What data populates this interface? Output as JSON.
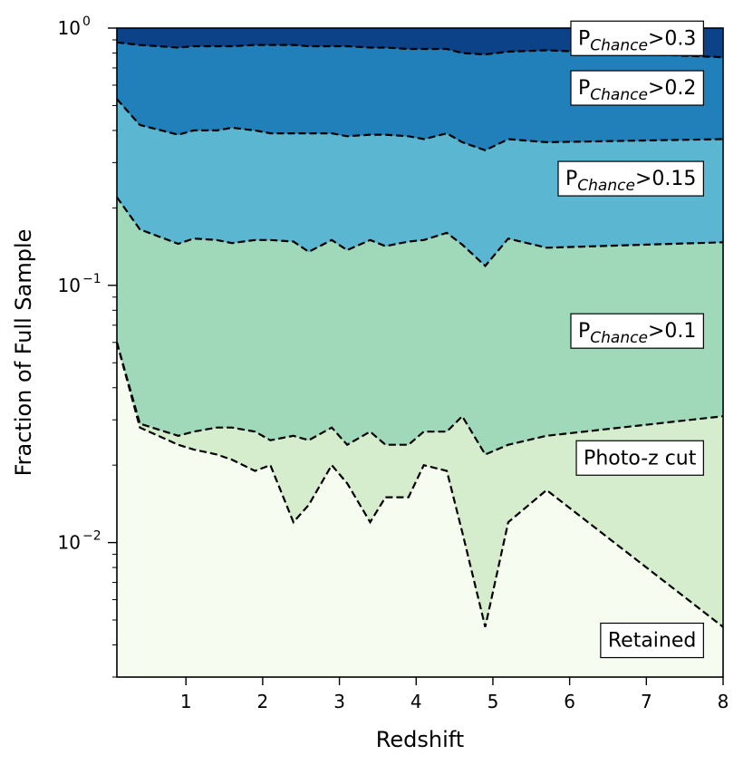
{
  "chart_data": {
    "type": "area",
    "xlabel": "Redshift",
    "ylabel": "Fraction of Full Sample",
    "yscale": "log",
    "xlim": [
      0.1,
      8.0
    ],
    "ylim": [
      0.003,
      1.0
    ],
    "x_ticks": [
      {
        "value": 1,
        "label": "1"
      },
      {
        "value": 2,
        "label": "2"
      },
      {
        "value": 3,
        "label": "3"
      },
      {
        "value": 4,
        "label": "4"
      },
      {
        "value": 5,
        "label": "5"
      },
      {
        "value": 6,
        "label": "6"
      },
      {
        "value": 7,
        "label": "7"
      },
      {
        "value": 8,
        "label": "8"
      }
    ],
    "y_ticks": [
      {
        "value": 1.0,
        "base": "10",
        "exponent": "0"
      },
      {
        "value": 0.1,
        "base": "10",
        "exponent": "−1"
      },
      {
        "value": 0.01,
        "base": "10",
        "exponent": "−2"
      }
    ],
    "x": [
      0.1,
      0.4,
      0.9,
      1.1,
      1.4,
      1.6,
      1.9,
      2.1,
      2.4,
      2.6,
      2.9,
      3.1,
      3.4,
      3.6,
      3.9,
      4.1,
      4.4,
      4.6,
      4.9,
      5.2,
      5.7,
      8.0
    ],
    "series": [
      {
        "name": "Retained",
        "color": "#f7fcf0",
        "values": [
          0.06,
          0.028,
          0.024,
          0.023,
          0.022,
          0.021,
          0.019,
          0.02,
          0.012,
          0.014,
          0.02,
          0.017,
          0.012,
          0.015,
          0.015,
          0.02,
          0.019,
          0.011,
          0.0047,
          0.012,
          0.016,
          0.0047
        ]
      },
      {
        "name": "Photo-z cut",
        "color": "#d5edcd",
        "values": [
          0.06,
          0.029,
          0.026,
          0.027,
          0.028,
          0.028,
          0.027,
          0.025,
          0.026,
          0.025,
          0.028,
          0.024,
          0.027,
          0.024,
          0.024,
          0.027,
          0.027,
          0.031,
          0.022,
          0.024,
          0.026,
          0.031
        ]
      },
      {
        "name": "PChance>0.1",
        "color": "#9fd9ba",
        "values": [
          0.22,
          0.165,
          0.145,
          0.152,
          0.15,
          0.146,
          0.15,
          0.15,
          0.148,
          0.135,
          0.15,
          0.137,
          0.15,
          0.142,
          0.148,
          0.15,
          0.16,
          0.144,
          0.119,
          0.152,
          0.14,
          0.147
        ]
      },
      {
        "name": "PChance>0.15",
        "color": "#5ab6d1",
        "values": [
          0.53,
          0.42,
          0.385,
          0.4,
          0.4,
          0.41,
          0.4,
          0.39,
          0.39,
          0.39,
          0.39,
          0.38,
          0.385,
          0.385,
          0.38,
          0.37,
          0.39,
          0.36,
          0.335,
          0.37,
          0.36,
          0.37
        ]
      },
      {
        "name": "PChance>0.2",
        "color": "#2180ba",
        "values": [
          0.88,
          0.86,
          0.84,
          0.85,
          0.85,
          0.85,
          0.86,
          0.86,
          0.86,
          0.85,
          0.85,
          0.85,
          0.84,
          0.84,
          0.83,
          0.83,
          0.83,
          0.8,
          0.79,
          0.81,
          0.82,
          0.77
        ]
      },
      {
        "name": "PChance>0.3",
        "color": "#0b4288",
        "values": [
          1.0,
          1.0,
          1.0,
          1.0,
          1.0,
          1.0,
          1.0,
          1.0,
          1.0,
          1.0,
          1.0,
          1.0,
          1.0,
          1.0,
          1.0,
          1.0,
          1.0,
          1.0,
          1.0,
          1.0,
          1.0,
          1.0
        ]
      }
    ],
    "region_labels": [
      {
        "main": "P",
        "sub": "Chance",
        "tail": ">0.3",
        "x": 7.65,
        "y": 0.92
      },
      {
        "main": "P",
        "sub": "Chance",
        "tail": ">0.2",
        "x": 7.65,
        "y": 0.59
      },
      {
        "main": "P",
        "sub": "Chance",
        "tail": ">0.15",
        "x": 7.65,
        "y": 0.262
      },
      {
        "main": "P",
        "sub": "Chance",
        "tail": ">0.1",
        "x": 7.65,
        "y": 0.067
      },
      {
        "main": "Photo-z cut",
        "sub": "",
        "tail": "",
        "x": 7.65,
        "y": 0.0215
      },
      {
        "main": "Retained",
        "sub": "",
        "tail": "",
        "x": 7.65,
        "y": 0.0042
      }
    ]
  }
}
